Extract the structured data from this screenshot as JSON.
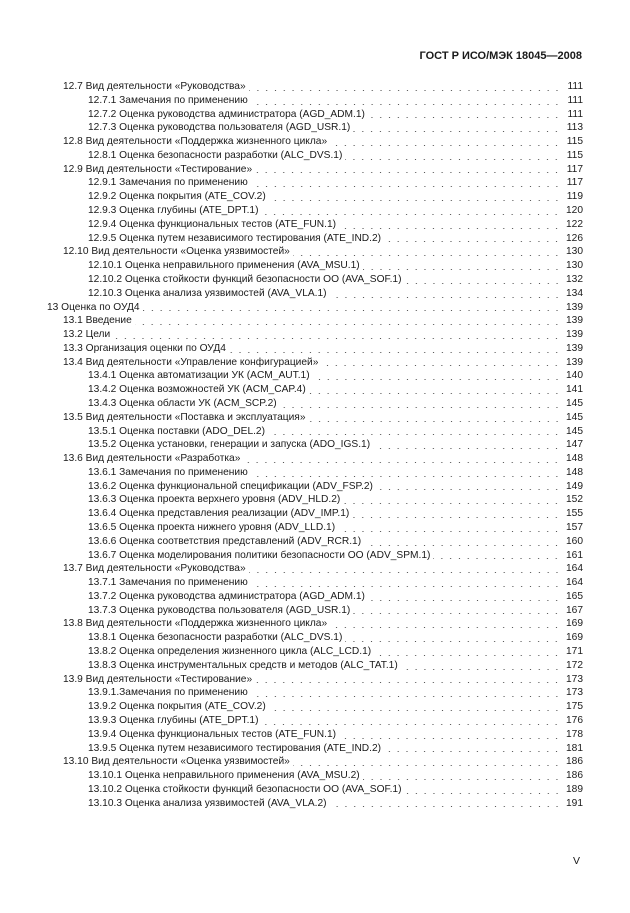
{
  "header": {
    "title": "ГОСТ Р ИСО/МЭК 18045—2008"
  },
  "toc": [
    {
      "level": 2,
      "title": "12.7 Вид деятельности «Руководства»",
      "page": "111"
    },
    {
      "level": 3,
      "title": "12.7.1 Замечания по применению",
      "page": "111"
    },
    {
      "level": 3,
      "title": "12.7.2 Оценка руководства администратора (AGD_ADM.1)",
      "page": "111"
    },
    {
      "level": 3,
      "title": "12.7.3 Оценка руководства пользователя (AGD_USR.1)",
      "page": "113"
    },
    {
      "level": 2,
      "title": "12.8 Вид деятельности «Поддержка жизненного цикла»",
      "page": "115"
    },
    {
      "level": 3,
      "title": "12.8.1 Оценка безопасности разработки  (ALC_DVS.1)",
      "page": "115"
    },
    {
      "level": 2,
      "title": "12.9 Вид деятельности «Тестирование»",
      "page": "117"
    },
    {
      "level": 3,
      "title": "12.9.1 Замечания по применению",
      "page": "117"
    },
    {
      "level": 3,
      "title": "12.9.2 Оценка покрытия (ATE_COV.2)",
      "page": "119"
    },
    {
      "level": 3,
      "title": "12.9.3 Оценка глубины (ATE_DPT.1)",
      "page": "120"
    },
    {
      "level": 3,
      "title": "12.9.4 Оценка функциональных тестов (ATE_FUN.1)",
      "page": "122"
    },
    {
      "level": 3,
      "title": "12.9.5 Оценка путем независимого  тестирования  (ATE_IND.2)",
      "page": "126"
    },
    {
      "level": 2,
      "title": "12.10 Вид деятельности «Оценка уязвимостей»",
      "page": "130"
    },
    {
      "level": 3,
      "title": "12.10.1 Оценка неправильного применения (AVA_MSU.1)",
      "page": "130"
    },
    {
      "level": 3,
      "title": "12.10.2 Оценка стойкости функций безопасности ОО (AVA_SOF.1)",
      "page": "132"
    },
    {
      "level": 3,
      "title": "12.10.3 Оценка анализа уязвимостей (AVA_VLA.1)",
      "page": "134"
    },
    {
      "level": 1,
      "title": "13 Оценка по ОУД4",
      "page": "139"
    },
    {
      "level": 2,
      "title": "13.1 Введение",
      "page": "139"
    },
    {
      "level": 2,
      "title": "13.2 Цели",
      "page": "139"
    },
    {
      "level": 2,
      "title": "13.3 Организация оценки по ОУД4",
      "page": "139"
    },
    {
      "level": 2,
      "title": "13.4 Вид деятельности «Управление конфигурацией»",
      "page": "139"
    },
    {
      "level": 3,
      "title": "13.4.1 Оценка автоматизации УК (ACM_AUT.1)",
      "page": "140"
    },
    {
      "level": 3,
      "title": "13.4.2 Оценка возможностей УК (ACM_CAP.4)",
      "page": "141"
    },
    {
      "level": 3,
      "title": "13.4.3 Оценка области УК (ACM_SCP.2)",
      "page": "145"
    },
    {
      "level": 2,
      "title": "13.5 Вид деятельности «Поставка и эксплуатация»",
      "page": "145"
    },
    {
      "level": 3,
      "title": "13.5.1 Оценка поставки (ADO_DEL.2)",
      "page": "145"
    },
    {
      "level": 3,
      "title": "13.5.2 Оценка установки, генерации и запуска (ADO_IGS.1)",
      "page": "147"
    },
    {
      "level": 2,
      "title": "13.6 Вид деятельности «Разработка»",
      "page": "148"
    },
    {
      "level": 3,
      "title": "13.6.1 Замечания по применению",
      "page": "148"
    },
    {
      "level": 3,
      "title": "13.6.2 Оценка функциональной спецификации (ADV_FSP.2)",
      "page": "149"
    },
    {
      "level": 3,
      "title": "13.6.3 Оценка проекта верхнего уровня (ADV_HLD.2)",
      "page": "152"
    },
    {
      "level": 3,
      "title": "13.6.4 Оценка представления реализации (ADV_IMP.1)",
      "page": "155"
    },
    {
      "level": 3,
      "title": "13.6.5 Оценка проекта нижнего уровня (ADV_LLD.1)",
      "page": "157"
    },
    {
      "level": 3,
      "title": "13.6.6 Оценка соответствия представлений (ADV_RCR.1)",
      "page": "160"
    },
    {
      "level": 3,
      "title": "13.6.7 Оценка моделирования политики безопасности ОО (ADV_SPM.1)",
      "page": "161"
    },
    {
      "level": 2,
      "title": "13.7 Вид деятельности «Руководства»",
      "page": "164"
    },
    {
      "level": 3,
      "title": "13.7.1 Замечания по применению",
      "page": "164"
    },
    {
      "level": 3,
      "title": "13.7.2 Оценка руководства администратора (AGD_ADM.1)",
      "page": "165"
    },
    {
      "level": 3,
      "title": "13.7.3 Оценка руководства пользователя  (AGD_USR.1)",
      "page": "167"
    },
    {
      "level": 2,
      "title": "13.8 Вид деятельности «Поддержка жизненного цикла»",
      "page": "169"
    },
    {
      "level": 3,
      "title": "13.8.1 Оценка безопасности  разработки  (ALC_DVS.1)",
      "page": "169"
    },
    {
      "level": 3,
      "title": "13.8.2 Оценка определения жизненного цикла (ALC_LCD.1)",
      "page": "171"
    },
    {
      "level": 3,
      "title": "13.8.3 Оценка инструментальных средств и методов (ALC_TAT.1)",
      "page": "172"
    },
    {
      "level": 2,
      "title": "13.9 Вид деятельности «Тестирование»",
      "page": "173"
    },
    {
      "level": 3,
      "title": "13.9.1.Замечания по применению",
      "page": "173"
    },
    {
      "level": 3,
      "title": "13.9.2 Оценка покрытия (ATE_COV.2)",
      "page": "175"
    },
    {
      "level": 3,
      "title": "13.9.3 Оценка глубины (ATE_DPT.1)",
      "page": "176"
    },
    {
      "level": 3,
      "title": "13.9.4 Оценка функциональных тестов (ATE_FUN.1)",
      "page": "178"
    },
    {
      "level": 3,
      "title": "13.9.5 Оценка путем независимого тестирования (ATE_IND.2)",
      "page": "181"
    },
    {
      "level": 2,
      "title": "13.10 Вид деятельности «Оценка уязвимостей»",
      "page": "186"
    },
    {
      "level": 3,
      "title": "13.10.1 Оценка неправильного применения (AVA_MSU.2)",
      "page": "186"
    },
    {
      "level": 3,
      "title": "13.10.2 Оценка стойкости функций безопасности ОО (AVA_SOF.1)",
      "page": "189"
    },
    {
      "level": 3,
      "title": "13.10.3 Оценка анализа уязвимостей (AVA_VLA.2)",
      "page": "191"
    }
  ],
  "footer": {
    "page_number": "V"
  }
}
